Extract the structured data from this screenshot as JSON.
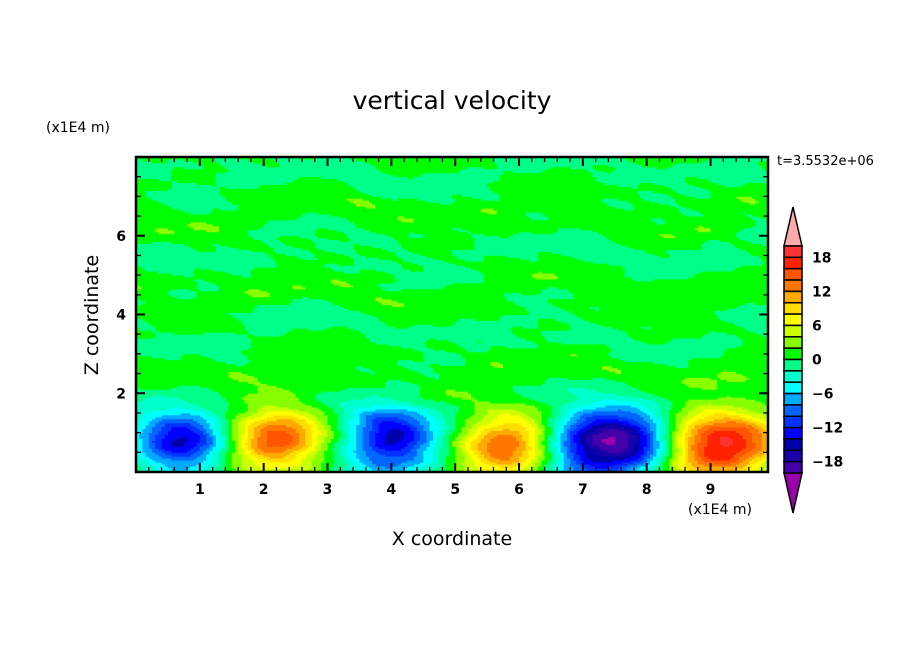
{
  "chart_data": {
    "type": "heatmap",
    "subtype": "filled-contour",
    "title": "vertical velocity",
    "xlabel": "X coordinate",
    "ylabel": "Z coordinate",
    "x_unit_label": "(x1E4 m)",
    "y_unit_label": "(x1E4 m)",
    "time_label": "t=3.5532e+06",
    "xlim": [
      0,
      9.9
    ],
    "ylim": [
      0,
      8
    ],
    "x_ticks": [
      "1",
      "2",
      "3",
      "4",
      "5",
      "6",
      "7",
      "8",
      "9"
    ],
    "y_ticks": [
      "2",
      "4",
      "6"
    ],
    "colorbar": {
      "levels_min": -20,
      "levels_max": 20,
      "step": 2,
      "tick_labels": [
        "18",
        "12",
        "6",
        "0",
        "-6",
        "-12",
        "-18"
      ],
      "colors": [
        "#ff3333",
        "#ff2200",
        "#ff5500",
        "#ff7700",
        "#ffaa00",
        "#ffdd00",
        "#ffff00",
        "#ccff00",
        "#88ff00",
        "#00ff00",
        "#00ff88",
        "#00ffcc",
        "#00ffff",
        "#00aaff",
        "#0066ff",
        "#0033ff",
        "#0000ff",
        "#0000aa",
        "#1a00aa",
        "#4400aa"
      ],
      "over_color": "#ffaaaa",
      "under_color": "#9900aa"
    },
    "features": [
      {
        "x": 0.7,
        "z": 0.75,
        "value": -14
      },
      {
        "x": 2.2,
        "z": 0.85,
        "value": 14
      },
      {
        "x": 4.0,
        "z": 0.8,
        "value": -15
      },
      {
        "x": 5.8,
        "z": 0.7,
        "value": 13
      },
      {
        "x": 7.1,
        "z": 0.7,
        "value": -13
      },
      {
        "x": 7.75,
        "z": 0.75,
        "value": -13
      },
      {
        "x": 8.9,
        "z": 0.7,
        "value": 12
      },
      {
        "x": 9.5,
        "z": 0.75,
        "value": 10
      }
    ],
    "background_range": [
      -2,
      2
    ]
  }
}
